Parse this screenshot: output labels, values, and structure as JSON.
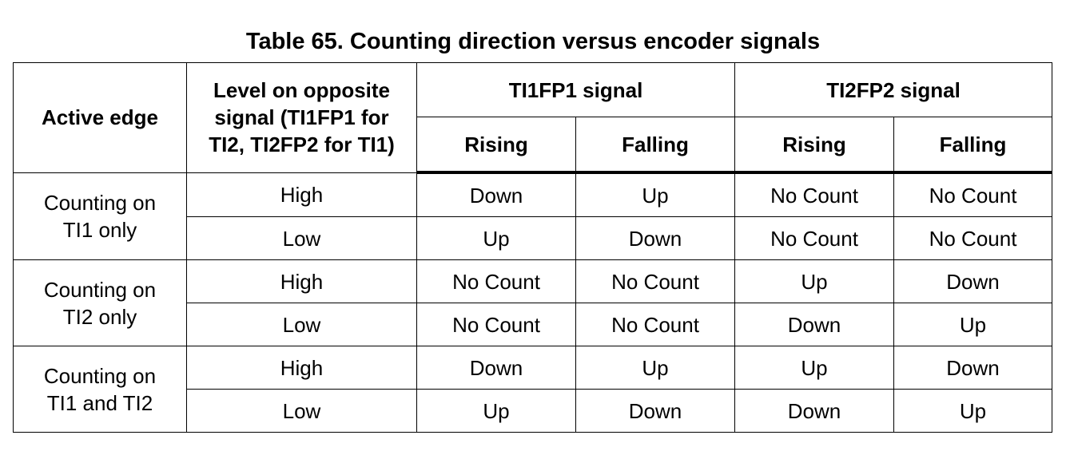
{
  "caption": "Table 65. Counting direction versus encoder signals",
  "headers": {
    "active_edge": "Active edge",
    "level_line1": "Level on opposite",
    "level_line2": "signal (TI1FP1 for",
    "level_line3": "TI2, TI2FP2 for TI1)",
    "ti1fp1": "TI1FP1 signal",
    "ti2fp2": "TI2FP2 signal",
    "ti1_rising": "Rising",
    "ti1_falling": "Falling",
    "ti2_rising": "Rising",
    "ti2_falling": "Falling"
  },
  "groups": [
    {
      "edge_line1": "Counting on",
      "edge_line2": "TI1 only",
      "rows": [
        {
          "level": "High",
          "ti1_rising": "Down",
          "ti1_falling": "Up",
          "ti2_rising": "No Count",
          "ti2_falling": "No Count"
        },
        {
          "level": "Low",
          "ti1_rising": "Up",
          "ti1_falling": "Down",
          "ti2_rising": "No Count",
          "ti2_falling": "No Count"
        }
      ]
    },
    {
      "edge_line1": "Counting on",
      "edge_line2": "TI2 only",
      "rows": [
        {
          "level": "High",
          "ti1_rising": "No Count",
          "ti1_falling": "No Count",
          "ti2_rising": "Up",
          "ti2_falling": "Down"
        },
        {
          "level": "Low",
          "ti1_rising": "No Count",
          "ti1_falling": "No Count",
          "ti2_rising": "Down",
          "ti2_falling": "Up"
        }
      ]
    },
    {
      "edge_line1": "Counting on",
      "edge_line2": "TI1 and TI2",
      "rows": [
        {
          "level": "High",
          "ti1_rising": "Down",
          "ti1_falling": "Up",
          "ti2_rising": "Up",
          "ti2_falling": "Down"
        },
        {
          "level": "Low",
          "ti1_rising": "Up",
          "ti1_falling": "Down",
          "ti2_rising": "Down",
          "ti2_falling": "Up"
        }
      ]
    }
  ]
}
